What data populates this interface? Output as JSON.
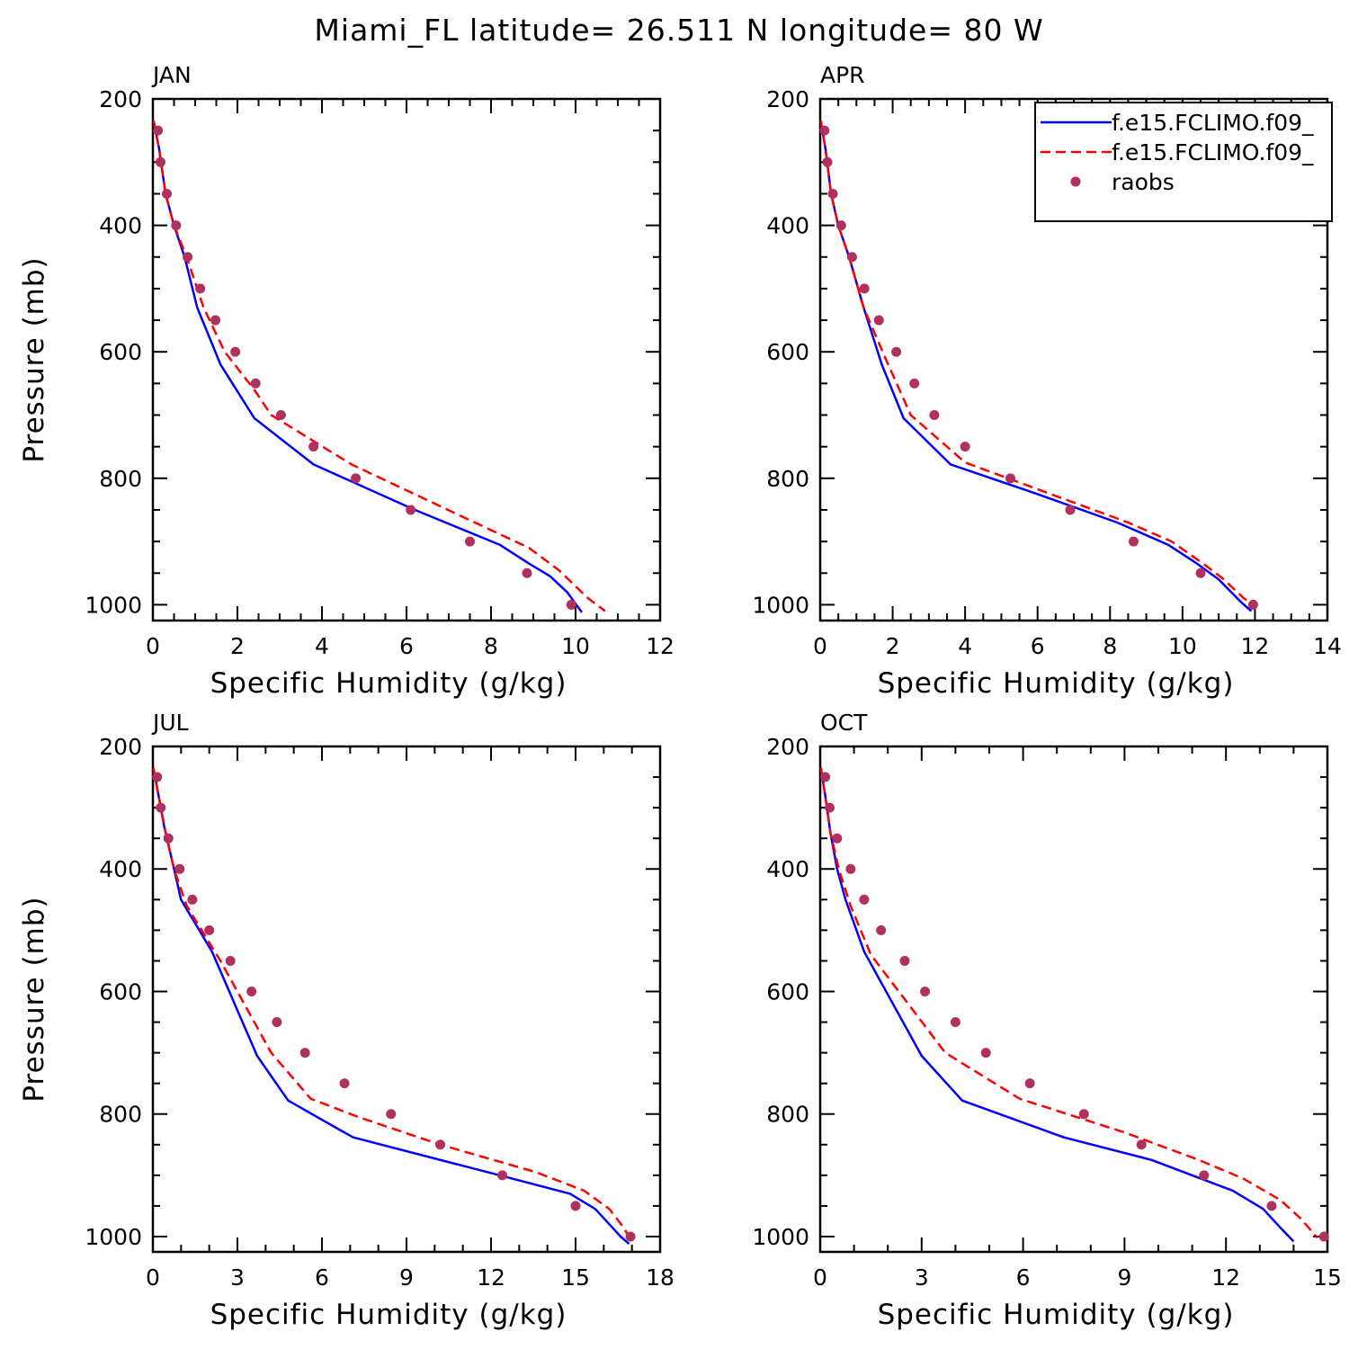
{
  "title": "Miami_FL  latitude= 26.511 N longitude= 80 W",
  "colors": {
    "model1": "#0000ff",
    "model2": "#ff0000",
    "obs": "#b03060",
    "axis": "#000000"
  },
  "legend": {
    "entries": [
      {
        "label": "f.e15.FCLIMO.f09_",
        "style": "solid",
        "color": "#0000ff"
      },
      {
        "label": "f.e15.FCLIMO.f09_",
        "style": "dashed",
        "color": "#ff0000"
      },
      {
        "label": "raobs",
        "style": "marker",
        "color": "#b03060"
      }
    ],
    "placement": "top-right of APR panel"
  },
  "chart_data": [
    {
      "type": "line",
      "panel": "JAN",
      "xlabel": "Specific Humidity (g/kg)",
      "ylabel": "Pressure (mb)",
      "xlim": [
        0,
        12
      ],
      "ylim": [
        200,
        1025
      ],
      "y_inverted": true,
      "xticks": [
        "0",
        "2",
        "4",
        "6",
        "8",
        "10",
        "12"
      ],
      "yticks": [
        "200",
        "400",
        "600",
        "800",
        "1000"
      ],
      "series": [
        {
          "name": "f.e15.FCLIMO.f09_",
          "style": "solid",
          "x": [
            0.02,
            0.15,
            0.3,
            0.5,
            0.75,
            1.05,
            1.6,
            2.4,
            3.8,
            6.2,
            8.2,
            8.9,
            9.4,
            9.8,
            10.15
          ],
          "y": [
            235,
            280,
            350,
            400,
            450,
            530,
            620,
            705,
            778,
            850,
            905,
            935,
            955,
            980,
            1012
          ]
        },
        {
          "name": "f.e15.FCLIMO.f09_",
          "style": "dashed",
          "x": [
            0.02,
            0.15,
            0.3,
            0.5,
            0.8,
            1.2,
            1.7,
            2.4,
            2.8,
            4.7,
            7.3,
            8.9,
            9.6,
            10.3,
            10.7
          ],
          "y": [
            235,
            280,
            350,
            400,
            450,
            530,
            600,
            660,
            700,
            778,
            860,
            910,
            945,
            990,
            1010
          ]
        },
        {
          "name": "raobs",
          "style": "marker",
          "x": [
            0.12,
            0.18,
            0.33,
            0.55,
            0.82,
            1.12,
            1.48,
            1.95,
            2.43,
            3.03,
            3.8,
            4.8,
            6.1,
            7.5,
            8.85,
            9.9
          ],
          "y": [
            250,
            300,
            350,
            400,
            450,
            500,
            550,
            600,
            650,
            700,
            750,
            800,
            850,
            900,
            950,
            1000
          ]
        }
      ]
    },
    {
      "type": "line",
      "panel": "APR",
      "xlabel": "Specific Humidity (g/kg)",
      "ylabel": "",
      "xlim": [
        0,
        14
      ],
      "ylim": [
        200,
        1025
      ],
      "y_inverted": true,
      "xticks": [
        "0",
        "2",
        "4",
        "6",
        "8",
        "10",
        "12",
        "14"
      ],
      "yticks": [
        "200",
        "400",
        "600",
        "800",
        "1000"
      ],
      "series": [
        {
          "name": "f.e15.FCLIMO.f09_",
          "style": "solid",
          "x": [
            0.02,
            0.15,
            0.3,
            0.5,
            0.8,
            1.2,
            1.7,
            2.3,
            3.6,
            6.0,
            8.2,
            9.6,
            10.4,
            11.0,
            11.6,
            11.9
          ],
          "y": [
            235,
            280,
            350,
            400,
            450,
            530,
            620,
            705,
            778,
            825,
            870,
            905,
            935,
            960,
            995,
            1010
          ]
        },
        {
          "name": "f.e15.FCLIMO.f09_",
          "style": "dashed",
          "x": [
            0.02,
            0.15,
            0.3,
            0.5,
            0.8,
            1.2,
            1.8,
            2.5,
            4.0,
            6.6,
            8.5,
            9.7,
            10.5,
            11.1,
            11.7,
            12.0
          ],
          "y": [
            235,
            280,
            350,
            400,
            450,
            530,
            610,
            700,
            775,
            830,
            870,
            900,
            932,
            958,
            990,
            1002
          ]
        },
        {
          "name": "raobs",
          "style": "marker",
          "x": [
            0.12,
            0.2,
            0.35,
            0.58,
            0.88,
            1.22,
            1.62,
            2.1,
            2.6,
            3.15,
            4.0,
            5.25,
            6.9,
            8.65,
            10.5,
            11.95
          ],
          "y": [
            250,
            300,
            350,
            400,
            450,
            500,
            550,
            600,
            650,
            700,
            750,
            800,
            850,
            900,
            950,
            1000
          ]
        }
      ]
    },
    {
      "type": "line",
      "panel": "JUL",
      "xlabel": "Specific Humidity (g/kg)",
      "ylabel": "Pressure (mb)",
      "xlim": [
        0,
        18
      ],
      "ylim": [
        200,
        1025
      ],
      "y_inverted": true,
      "xticks": [
        "0",
        "3",
        "6",
        "9",
        "12",
        "15",
        "18"
      ],
      "yticks": [
        "200",
        "400",
        "600",
        "800",
        "1000"
      ],
      "series": [
        {
          "name": "f.e15.FCLIMO.f09_",
          "style": "solid",
          "x": [
            0.02,
            0.2,
            0.4,
            0.65,
            1.0,
            2.1,
            3.7,
            4.8,
            7.1,
            12.3,
            14.8,
            15.7,
            16.2,
            16.6,
            16.9
          ],
          "y": [
            235,
            280,
            330,
            380,
            450,
            535,
            705,
            778,
            838,
            900,
            930,
            955,
            980,
            1000,
            1012
          ]
        },
        {
          "name": "f.e15.FCLIMO.f09_",
          "style": "dashed",
          "x": [
            0.02,
            0.2,
            0.45,
            0.75,
            1.2,
            2.4,
            4.2,
            5.6,
            7.3,
            10.2,
            13.6,
            15.3,
            16.2,
            16.7,
            17.0
          ],
          "y": [
            235,
            280,
            340,
            400,
            460,
            550,
            700,
            775,
            805,
            850,
            895,
            925,
            955,
            985,
            1008
          ]
        },
        {
          "name": "raobs",
          "style": "marker",
          "x": [
            0.15,
            0.28,
            0.55,
            0.95,
            1.4,
            2.0,
            2.75,
            3.5,
            4.4,
            5.4,
            6.8,
            8.45,
            10.2,
            12.4,
            15.0,
            16.95
          ],
          "y": [
            250,
            300,
            350,
            400,
            450,
            500,
            550,
            600,
            650,
            700,
            750,
            800,
            850,
            900,
            950,
            1000
          ]
        }
      ]
    },
    {
      "type": "line",
      "panel": "OCT",
      "xlabel": "Specific Humidity (g/kg)",
      "ylabel": "",
      "xlim": [
        0,
        15
      ],
      "ylim": [
        200,
        1025
      ],
      "y_inverted": true,
      "xticks": [
        "0",
        "3",
        "6",
        "9",
        "12",
        "15"
      ],
      "yticks": [
        "200",
        "400",
        "600",
        "800",
        "1000"
      ],
      "series": [
        {
          "name": "f.e15.FCLIMO.f09_",
          "style": "solid",
          "x": [
            0.02,
            0.15,
            0.3,
            0.5,
            0.75,
            1.3,
            3.0,
            4.2,
            7.2,
            9.8,
            12.2,
            13.1,
            13.6,
            14.0
          ],
          "y": [
            235,
            280,
            340,
            400,
            450,
            535,
            705,
            778,
            838,
            875,
            925,
            955,
            985,
            1008
          ]
        },
        {
          "name": "f.e15.FCLIMO.f09_",
          "style": "dashed",
          "x": [
            0.02,
            0.15,
            0.3,
            0.55,
            0.9,
            1.5,
            2.6,
            3.7,
            5.9,
            9.0,
            11.2,
            12.5,
            13.6,
            14.2,
            14.7
          ],
          "y": [
            235,
            280,
            340,
            400,
            460,
            540,
            620,
            700,
            775,
            830,
            875,
            905,
            940,
            970,
            1002
          ]
        },
        {
          "name": "raobs",
          "style": "marker",
          "x": [
            0.15,
            0.28,
            0.5,
            0.9,
            1.3,
            1.8,
            2.5,
            3.1,
            4.0,
            4.9,
            6.2,
            7.8,
            9.5,
            11.35,
            13.35,
            14.9
          ],
          "y": [
            250,
            300,
            350,
            400,
            450,
            500,
            550,
            600,
            650,
            700,
            750,
            800,
            850,
            900,
            950,
            1000
          ]
        }
      ]
    }
  ]
}
